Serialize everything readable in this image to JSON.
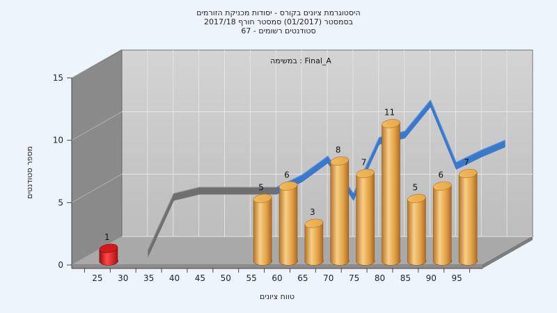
{
  "chart_data": {
    "type": "bar",
    "title_lines": [
      "היסטוגרמת ציונים בקורס - יסודות מכניקת הזורמים",
      "בסמסטר  (01/2017)  סמסטר חורף 2017/18",
      "סטודנטים רשומים - 67"
    ],
    "inner_label": "במשימה : Final_A",
    "xlabel": "טווח ציונים",
    "ylabel": "מספר סטודנטים",
    "ylim": [
      0,
      15
    ],
    "yticks": [
      0,
      5,
      10,
      15
    ],
    "categories": [
      "25",
      "30",
      "35",
      "40",
      "45",
      "50",
      "55",
      "60",
      "65",
      "70",
      "75",
      "80",
      "85",
      "90",
      "95"
    ],
    "series": [
      {
        "values": [
          1,
          null,
          null,
          null,
          null,
          null,
          5,
          6,
          3,
          8,
          7,
          11,
          5,
          6,
          7
        ]
      }
    ],
    "ribbon_values": [
      null,
      0,
      4.5,
      5,
      5,
      5,
      5,
      6,
      7.5,
      4.5,
      9,
      9.5,
      12,
      7,
      8
    ],
    "highlight_category": "25",
    "colors": {
      "bar": "#e6a84a",
      "bar_highlight": "#e01e1e",
      "ribbon_gray": "#6f6f6f",
      "ribbon_blue": "#3a78c9",
      "wall": "#c9c9c9",
      "side_wall": "#8a8a8a",
      "floor": "#a8a8a8",
      "background": "#eef4fb"
    },
    "grid": true
  }
}
